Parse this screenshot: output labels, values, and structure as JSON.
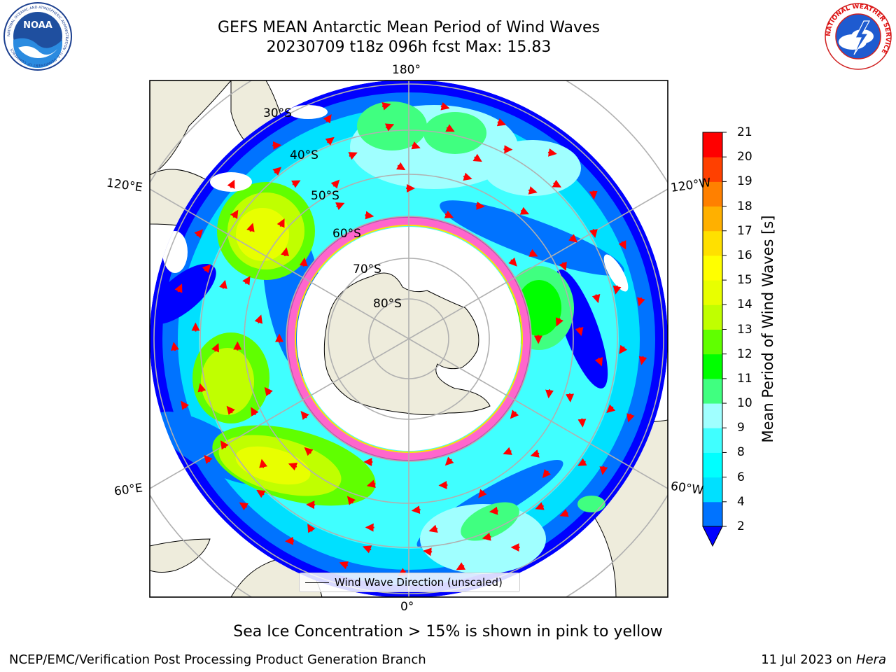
{
  "header": {
    "title_line1": "GEFS MEAN Antarctic Mean Period of Wind Waves",
    "title_line2": "20230709 t18z 096h fcst   Max: 15.83"
  },
  "logos": {
    "noaa_text": "NOAA",
    "noaa_ring_text": "NATIONAL OCEANIC AND ATMOSPHERIC ADMINISTRATION · U.S. DEPARTMENT OF COMMERCE",
    "nws_ring_text": "NATIONAL WEATHER SERVICE"
  },
  "map": {
    "projection": "south-polar stereographic",
    "longitude_labels": {
      "top": "180°",
      "bottom": "0°",
      "left_upper": "120°E",
      "left_lower": "60°E",
      "right_upper": "120°W",
      "right_lower": "60°W"
    },
    "latitude_labels": [
      "30°S",
      "40°S",
      "50°S",
      "60°S",
      "70°S",
      "80°S"
    ],
    "legend_text": "Wind Wave Direction (unscaled)",
    "colors": {
      "land": "#eeecdc",
      "ocean_low": "#0000ff",
      "grid": "#b0b0b0",
      "arrows": "#ff0000",
      "sea_ice": "#ff66cc"
    }
  },
  "colorbar": {
    "label": "Mean Period of Wind Waves [s]",
    "ticks": [
      "21",
      "20",
      "19",
      "18",
      "17",
      "16",
      "15",
      "14",
      "13",
      "12",
      "11",
      "10",
      "9",
      "8",
      "6",
      "4",
      "2"
    ],
    "colors": [
      "#0000ff",
      "#0073ff",
      "#00e0ff",
      "#00ffff",
      "#40ffff",
      "#a0ffff",
      "#40ff80",
      "#00ff00",
      "#60ff00",
      "#c0ff00",
      "#e8ff00",
      "#ffff00",
      "#ffe000",
      "#ffb000",
      "#ff8000",
      "#ff4000",
      "#ff0000"
    ]
  },
  "notes": {
    "sea_ice": "Sea Ice Concentration > 15% is shown in pink to yellow"
  },
  "footer": {
    "left": "NCEP/EMC/Verification Post Processing Product Generation Branch",
    "right_date": "11 Jul 2023 on ",
    "right_host": "Hera"
  }
}
